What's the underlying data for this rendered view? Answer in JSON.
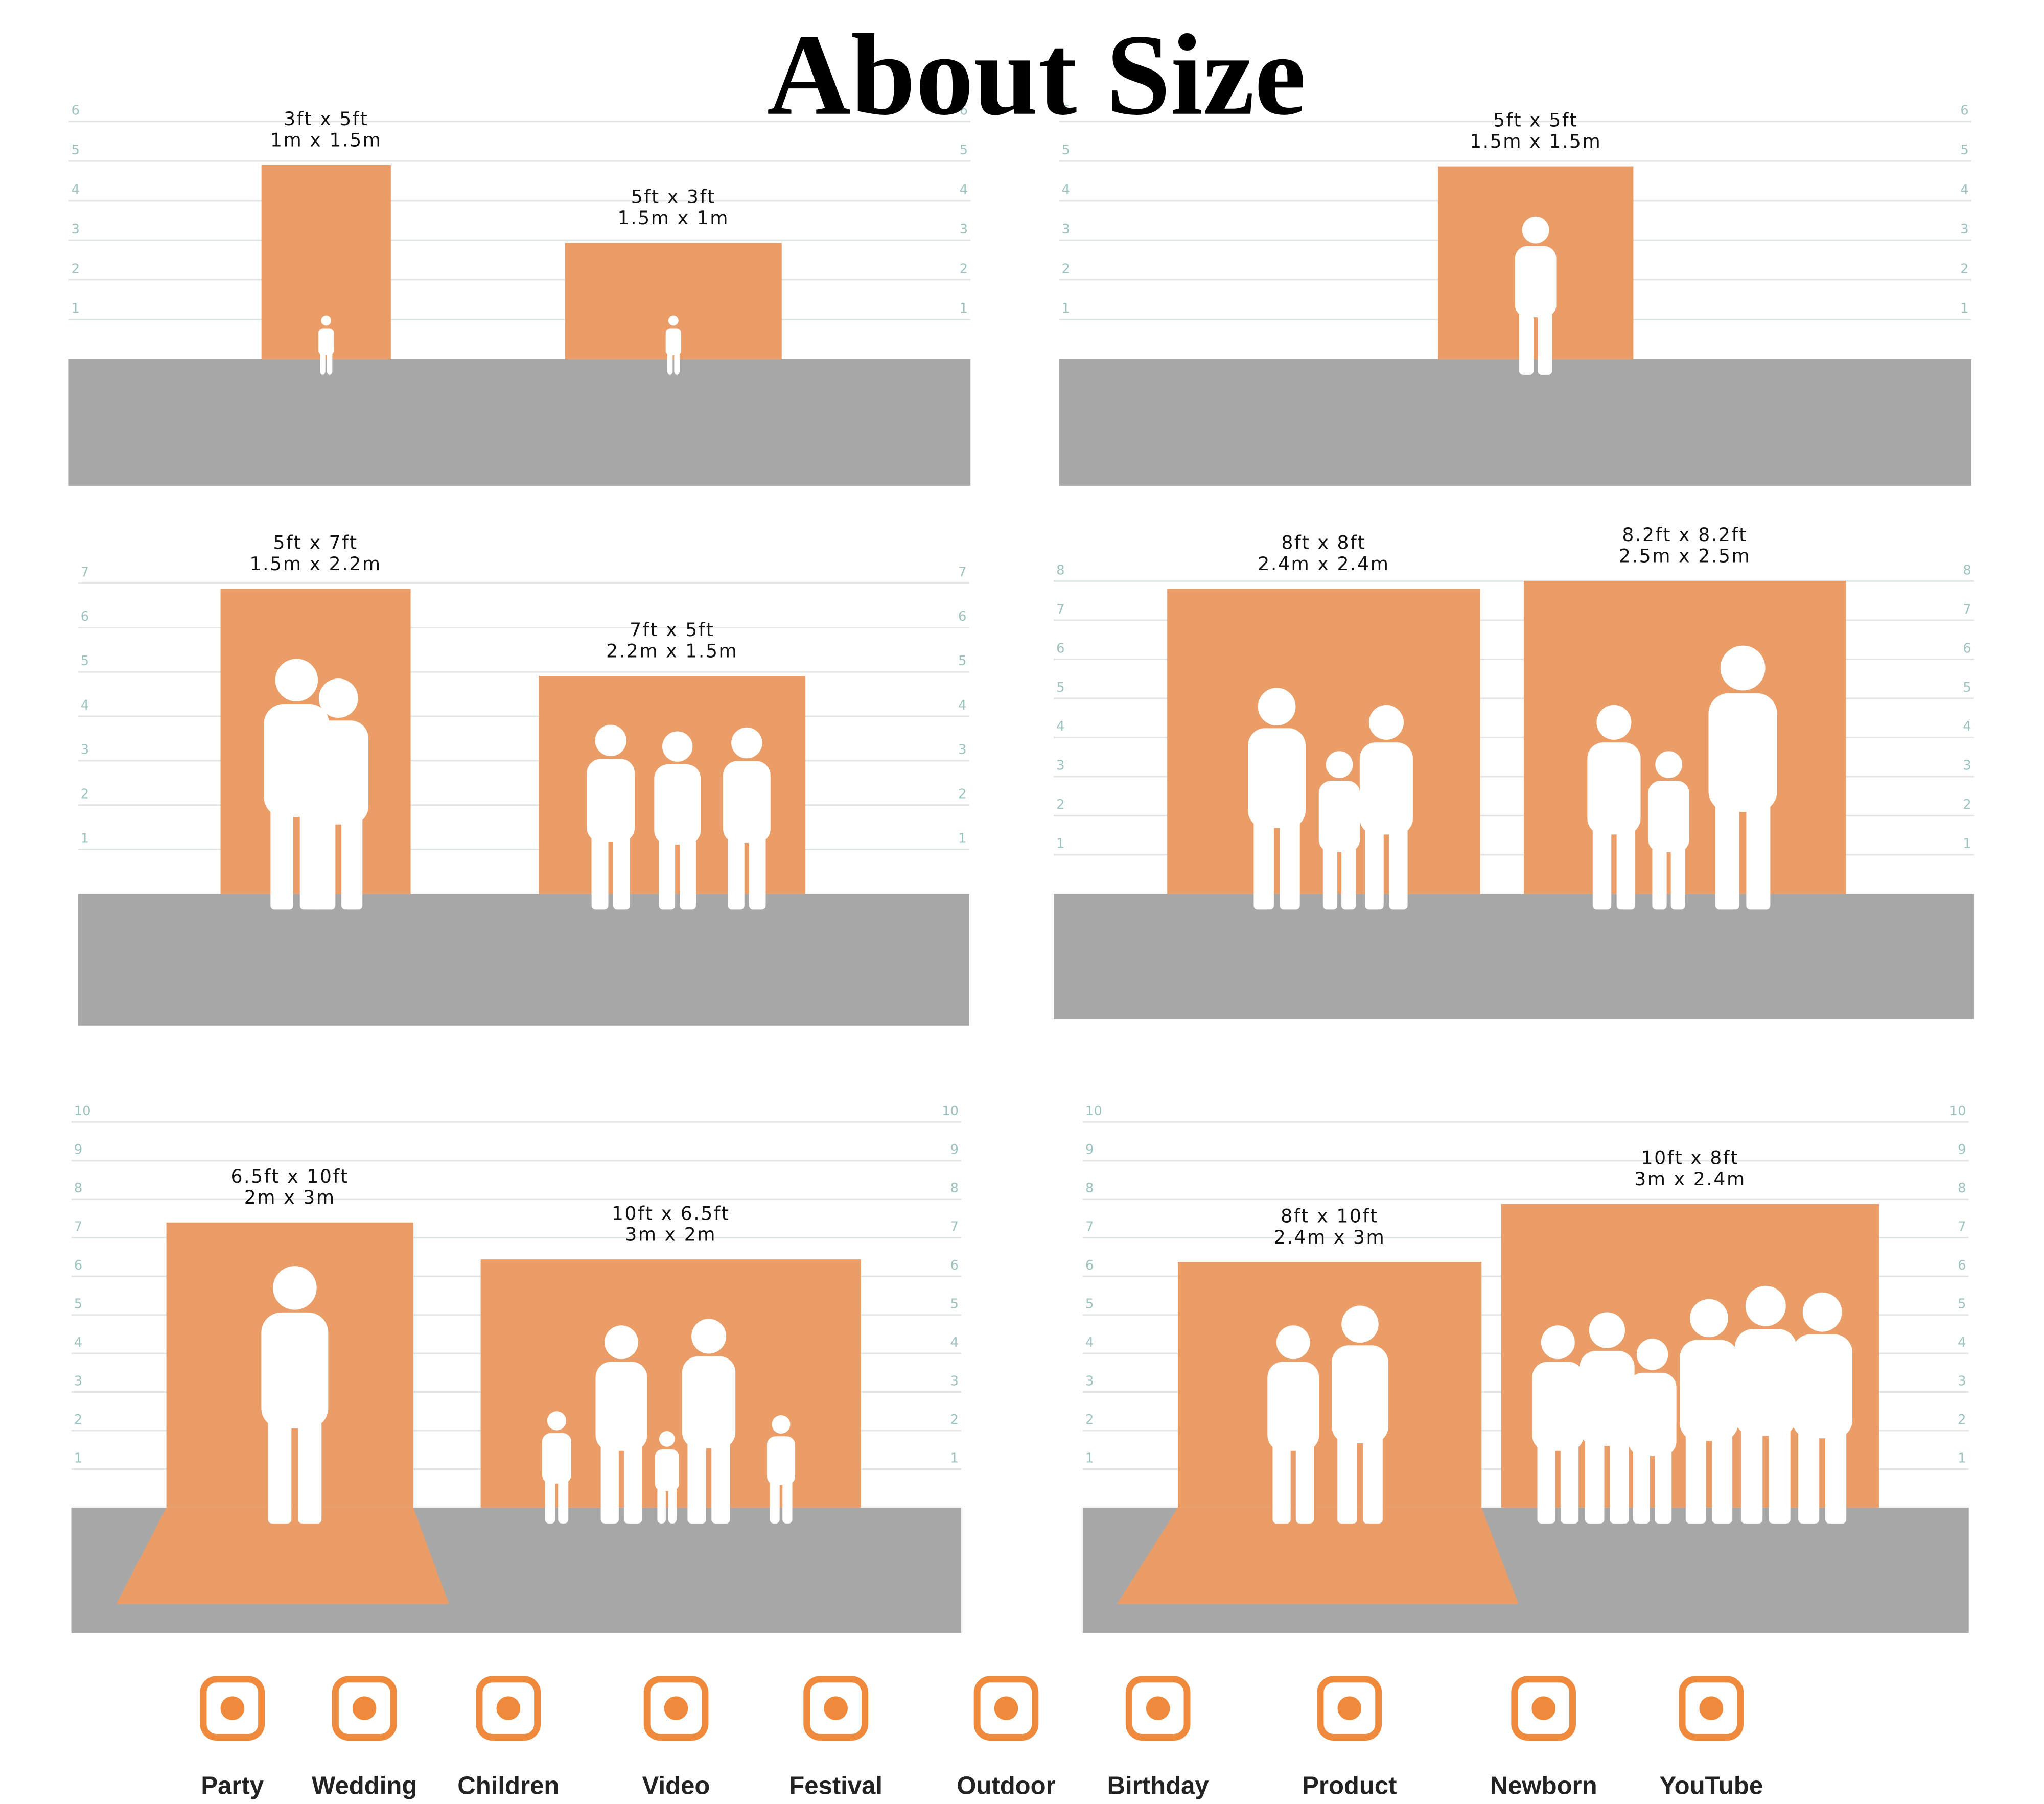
{
  "title": "About Size",
  "panels": [
    {
      "scale": [
        1,
        2,
        3,
        4,
        5,
        6
      ],
      "backdrops": [
        {
          "ft": "3ft x 5ft",
          "m": "1m x 1.5m"
        },
        {
          "ft": "5ft x 3ft",
          "m": "1.5m x 1m"
        }
      ]
    },
    {
      "scale": [
        1,
        2,
        3,
        4,
        5,
        6
      ],
      "backdrops": [
        {
          "ft": "5ft x 5ft",
          "m": "1.5m x 1.5m"
        }
      ]
    },
    {
      "scale": [
        1,
        2,
        3,
        4,
        5,
        6,
        7
      ],
      "backdrops": [
        {
          "ft": "5ft x 7ft",
          "m": "1.5m x 2.2m"
        },
        {
          "ft": "7ft x 5ft",
          "m": "2.2m x 1.5m"
        }
      ]
    },
    {
      "scale": [
        1,
        2,
        3,
        4,
        5,
        6,
        7,
        8
      ],
      "backdrops": [
        {
          "ft": "8ft x 8ft",
          "m": "2.4m x 2.4m"
        },
        {
          "ft": "8.2ft x 8.2ft",
          "m": "2.5m x 2.5m"
        }
      ]
    },
    {
      "scale": [
        1,
        2,
        3,
        4,
        5,
        6,
        7,
        8,
        9,
        10
      ],
      "backdrops": [
        {
          "ft": "6.5ft x 10ft",
          "m": "2m x 3m"
        },
        {
          "ft": "10ft x 6.5ft",
          "m": "3m x 2m"
        }
      ]
    },
    {
      "scale": [
        1,
        2,
        3,
        4,
        5,
        6,
        7,
        8,
        9,
        10
      ],
      "backdrops": [
        {
          "ft": "8ft x 10ft",
          "m": "2.4m x 3m"
        },
        {
          "ft": "10ft x 8ft",
          "m": "3m x 2.4m"
        }
      ]
    }
  ],
  "uses": [
    "Party",
    "Wedding",
    "Children",
    "Video",
    "Festival",
    "Outdoor",
    "Birthday",
    "Product",
    "Newborn",
    "YouTube"
  ]
}
